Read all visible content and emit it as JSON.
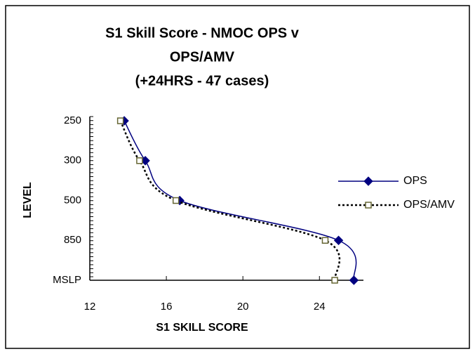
{
  "chart_data": {
    "type": "line",
    "orientation": "horizontal",
    "title": [
      "S1 Skill Score - NMOC  OPS  v",
      "OPS/AMV",
      "(+24HRS  -  47 cases)"
    ],
    "x_label": "S1 SKILL SCORE",
    "y_label": "LEVEL",
    "categories": [
      "250",
      "300",
      "500",
      "850",
      "MSLP"
    ],
    "xlim": [
      12,
      26.3
    ],
    "xticks": [
      12,
      16,
      20,
      24
    ],
    "series": [
      {
        "name": "OPS",
        "color": "#000080",
        "marker": "diamond",
        "dash": "none",
        "values": [
          13.8,
          14.9,
          16.7,
          25.0,
          25.8
        ]
      },
      {
        "name": "OPS/AMV",
        "color": "#000000",
        "marker_color": "#666633",
        "marker": "square",
        "dash": "3,3",
        "values": [
          13.6,
          14.6,
          16.5,
          24.3,
          24.8
        ]
      }
    ],
    "legend": "right"
  }
}
